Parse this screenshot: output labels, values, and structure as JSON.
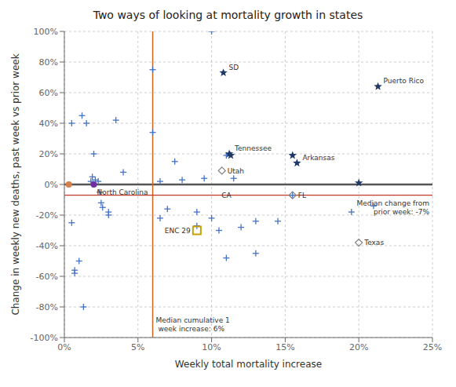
{
  "chart_data": {
    "type": "scatter",
    "title": "Two ways of looking at mortality growth in states",
    "x_label": "Weekly total mortality increase",
    "y_label": "Change in weekly new deaths, past week vs prior week",
    "xlim": [
      0.0,
      0.25
    ],
    "ylim": [
      -1.0,
      1.0
    ],
    "xticks": [
      {
        "value": 0.0,
        "label": "0%"
      },
      {
        "value": 0.05,
        "label": "5%"
      },
      {
        "value": 0.1,
        "label": "10%"
      },
      {
        "value": 0.15,
        "label": "15%"
      },
      {
        "value": 0.2,
        "label": "20%"
      },
      {
        "value": 0.25,
        "label": "25%"
      }
    ],
    "yticks": [
      {
        "value": -1.0,
        "label": "-100%"
      },
      {
        "value": -0.8,
        "label": "-80%"
      },
      {
        "value": -0.6,
        "label": "-60%"
      },
      {
        "value": -0.4,
        "label": "-40%"
      },
      {
        "value": -0.2,
        "label": "-20%"
      },
      {
        "value": 0.0,
        "label": "0%"
      },
      {
        "value": 0.2,
        "label": "20%"
      },
      {
        "value": 0.4,
        "label": "40%"
      },
      {
        "value": 0.6,
        "label": "60%"
      },
      {
        "value": 0.8,
        "label": "80%"
      },
      {
        "value": 1.0,
        "label": "100%"
      }
    ],
    "grid": true,
    "series": [
      {
        "marker": "plus",
        "color": "#4472C4",
        "x": [
          0.005,
          0.005,
          0.007,
          0.007,
          0.01,
          0.012,
          0.013,
          0.015,
          0.018,
          0.019,
          0.02,
          0.021,
          0.023,
          0.024,
          0.025,
          0.026,
          0.03,
          0.03,
          0.035,
          0.04,
          0.06,
          0.06,
          0.065,
          0.065,
          0.07,
          0.075,
          0.08,
          0.09,
          0.09,
          0.095,
          0.1,
          0.1,
          0.105,
          0.11,
          0.11,
          0.115,
          0.12,
          0.13,
          0.13,
          0.145,
          0.155,
          0.195,
          0.21
        ],
        "y": [
          0.4,
          -0.25,
          -0.56,
          -0.58,
          -0.5,
          0.45,
          -0.8,
          0.4,
          0.02,
          0.05,
          0.2,
          0.03,
          0.02,
          -0.05,
          -0.12,
          -0.15,
          -0.18,
          -0.2,
          0.42,
          0.08,
          0.75,
          0.34,
          -0.22,
          0.02,
          -0.16,
          0.15,
          0.03,
          -0.18,
          -0.27,
          0.04,
          1.0,
          -0.22,
          -0.3,
          0.19,
          -0.48,
          0.04,
          -0.28,
          -0.24,
          -0.45,
          -0.24,
          -0.07,
          -0.18,
          -0.14
        ]
      },
      {
        "marker": "star",
        "color": "#1F3864",
        "x": [
          0.108,
          0.213,
          0.112,
          0.113,
          0.155,
          0.158,
          0.2
        ],
        "y": [
          0.73,
          0.64,
          0.2,
          0.19,
          0.19,
          0.14,
          0.01
        ],
        "labels": [
          "SD",
          "Puerto Rico",
          "Tennessee",
          null,
          null,
          "Arkansas",
          null
        ]
      },
      {
        "marker": "diamond",
        "color": "#808080",
        "x": [
          0.107,
          0.155,
          0.2
        ],
        "y": [
          0.09,
          -0.07,
          -0.38
        ],
        "labels": [
          "Utah",
          "FL",
          "Texas"
        ]
      },
      {
        "marker": "circle",
        "color": "#d4804a",
        "x": [
          0.003
        ],
        "y": [
          0.0
        ]
      },
      {
        "marker": "circle",
        "color": "#7030a0",
        "x": [
          0.02
        ],
        "y": [
          0.0
        ],
        "labels": [
          "North Carolina"
        ]
      },
      {
        "marker": "square",
        "color": "#c8a000",
        "x": [
          0.09
        ],
        "y": [
          -0.3
        ],
        "labels": [
          "ENC 29"
        ]
      }
    ],
    "annotations": [
      {
        "text": "CA",
        "x": 0.11,
        "y": -0.04
      }
    ],
    "reference_lines": [
      {
        "axis": "y",
        "value": 0.0,
        "color": "#555555"
      },
      {
        "axis": "x",
        "value": 0.06,
        "color": "#c86820",
        "label": "Median cumulative 1\n week increase: 6%"
      },
      {
        "axis": "y",
        "value": -0.07,
        "color": "#c0392b",
        "label": "Median change from\nprior week: -7%"
      }
    ]
  }
}
